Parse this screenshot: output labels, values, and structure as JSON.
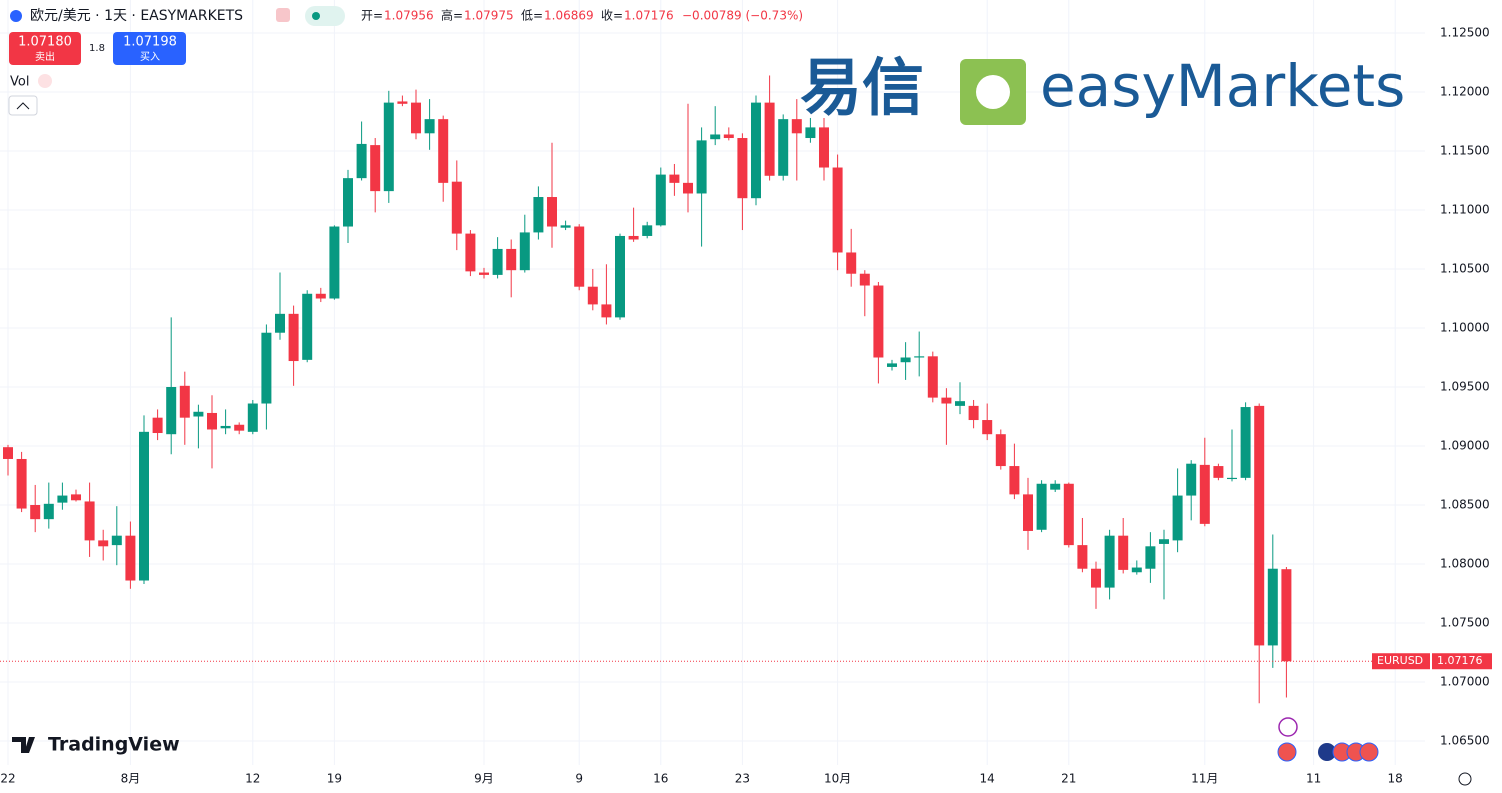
{
  "header": {
    "title": "欧元/美元 · 1天 · EASYMARKETS",
    "open_label": "开=",
    "high_label": "高=",
    "low_label": "低=",
    "close_label": "收=",
    "change": "−0.00789 (−0.73%)",
    "sell_price": "1.07180",
    "sell_label": "卖出",
    "spread": "1.8",
    "buy_price": "1.07198",
    "buy_label": "买入",
    "vol": "Vol",
    "logo_cn": "易信",
    "logo_en": "easyMarkets",
    "brand": "TradingView"
  },
  "chart_data": {
    "type": "candlestick",
    "symbol": "EURUSD",
    "up_color": "#089981",
    "down_color": "#f23645",
    "grid": true,
    "categories": [
      "22",
      null,
      null,
      null,
      null,
      null,
      null,
      null,
      null,
      "8月",
      null,
      null,
      null,
      null,
      null,
      null,
      null,
      null,
      "12",
      null,
      null,
      null,
      null,
      null,
      "19",
      null,
      null,
      null,
      null,
      null,
      null,
      null,
      null,
      null,
      null,
      "9月",
      null,
      null,
      null,
      null,
      null,
      null,
      "9",
      null,
      null,
      null,
      null,
      null,
      "16",
      null,
      null,
      null,
      null,
      null,
      "23",
      null,
      null,
      null,
      null,
      null,
      null,
      "10月",
      null,
      null,
      null,
      null,
      null,
      null,
      null,
      null,
      null,
      null,
      "14",
      null,
      null,
      null,
      null,
      null,
      "21",
      null,
      null,
      null,
      null,
      null,
      null,
      null,
      null,
      null,
      "11月",
      null,
      null,
      null,
      null,
      null,
      null,
      null,
      "11",
      null,
      null,
      null,
      null,
      null,
      "18",
      null
    ],
    "open": [
      1.0899,
      1.0889,
      1.085,
      1.0838,
      1.0852,
      1.0859,
      1.0853,
      1.082,
      1.0816,
      1.0824,
      1.0786,
      1.0924,
      1.091,
      1.0951,
      1.0925,
      1.0928,
      1.0915,
      1.0918,
      1.0912,
      1.0936,
      1.0996,
      1.1012,
      1.0973,
      1.1029,
      1.1025,
      1.1086,
      1.1127,
      1.1155,
      1.1116,
      1.1192,
      1.1191,
      1.1165,
      1.1177,
      1.1124,
      1.108,
      1.1047,
      1.1045,
      1.1067,
      1.1049,
      1.1081,
      1.1111,
      1.1085,
      1.1086,
      1.1035,
      1.102,
      1.1009,
      1.1078,
      1.1078,
      1.1087,
      1.113,
      1.1123,
      1.1114,
      1.116,
      1.1164,
      1.1161,
      1.111,
      1.1191,
      1.1129,
      1.1177,
      1.1161,
      1.117,
      1.1136,
      1.1064,
      1.1046,
      1.1036,
      1.0967,
      1.0971,
      1.0975,
      1.0976,
      1.0941,
      1.0934,
      1.0934,
      1.0922,
      1.091,
      1.0883,
      1.0859,
      1.0829,
      1.0863,
      1.0868,
      1.0816,
      1.0796,
      1.078,
      1.0824,
      1.0793,
      1.0796,
      1.0817,
      1.082,
      1.0858,
      1.0884,
      1.0883,
      1.0872,
      1.0873,
      1.0934,
      1.0731,
      1.07956,
      null,
      null,
      null,
      null,
      null,
      null,
      null,
      null,
      null
    ],
    "high": [
      1.0901,
      1.0895,
      1.0867,
      1.0869,
      1.0869,
      1.0863,
      1.0869,
      1.0829,
      1.0849,
      1.0836,
      1.0926,
      1.0931,
      1.1009,
      1.0963,
      1.0935,
      1.0943,
      1.0931,
      1.092,
      1.0939,
      1.1003,
      1.1047,
      1.1019,
      1.1032,
      1.1034,
      1.1087,
      1.1134,
      1.1175,
      1.1161,
      1.1201,
      1.1197,
      1.1202,
      1.1194,
      1.118,
      1.1142,
      1.1083,
      1.1051,
      1.1077,
      1.1075,
      1.1096,
      1.112,
      1.1157,
      1.1091,
      1.1088,
      1.105,
      1.1054,
      1.108,
      1.1102,
      1.109,
      1.1136,
      1.1139,
      1.119,
      1.117,
      1.1188,
      1.117,
      1.1165,
      1.1197,
      1.1214,
      1.1181,
      1.1194,
      1.1178,
      1.1178,
      1.1147,
      1.1084,
      1.1049,
      1.1039,
      1.0973,
      1.0988,
      1.0997,
      1.098,
      1.0949,
      1.0954,
      1.0939,
      1.0936,
      1.0914,
      1.0902,
      1.0873,
      1.0871,
      1.0871,
      1.0869,
      1.0839,
      1.0802,
      1.0829,
      1.0839,
      1.0803,
      1.0827,
      1.0829,
      1.0881,
      1.0888,
      1.0907,
      1.0885,
      1.0914,
      1.0937,
      1.0936,
      1.0825,
      1.07975,
      null,
      null,
      null,
      null,
      null,
      null,
      null,
      null,
      null
    ],
    "low": [
      1.0875,
      1.0844,
      1.0827,
      1.083,
      1.0846,
      1.0853,
      1.0806,
      1.0803,
      1.0799,
      1.0779,
      1.0783,
      1.0905,
      1.0893,
      1.0901,
      1.0898,
      1.0881,
      1.091,
      1.091,
      1.091,
      1.0914,
      1.099,
      1.0951,
      1.0971,
      1.1022,
      1.1024,
      1.1072,
      1.1125,
      1.1098,
      1.1106,
      1.1188,
      1.116,
      1.1151,
      1.1107,
      1.1066,
      1.1044,
      1.1042,
      1.1042,
      1.1026,
      1.1047,
      1.1075,
      1.1068,
      1.1083,
      1.1032,
      1.1015,
      1.1003,
      1.1007,
      1.1073,
      1.1076,
      1.1086,
      1.1112,
      1.1098,
      1.1069,
      1.1155,
      1.1159,
      1.1083,
      1.1104,
      1.1125,
      1.1125,
      1.1125,
      1.1157,
      1.1125,
      1.1049,
      1.1035,
      1.101,
      1.0953,
      1.0964,
      1.0956,
      1.0959,
      1.0937,
      1.0901,
      1.0927,
      1.0915,
      1.0905,
      1.088,
      1.0855,
      1.0812,
      1.0827,
      1.0861,
      1.0814,
      1.0793,
      1.0762,
      1.077,
      1.0792,
      1.0791,
      1.0784,
      1.077,
      1.081,
      1.0837,
      1.0832,
      1.0871,
      1.087,
      1.0871,
      1.0682,
      1.0712,
      1.06869,
      null,
      null,
      null,
      null,
      null,
      null,
      null,
      null,
      null
    ],
    "close": [
      1.0889,
      1.0847,
      1.0838,
      1.0851,
      1.0858,
      1.0854,
      1.082,
      1.0815,
      1.0824,
      1.0786,
      1.0912,
      1.0911,
      1.095,
      1.0924,
      1.0929,
      1.0914,
      1.0917,
      1.0913,
      1.0936,
      1.0996,
      1.1012,
      1.0972,
      1.1029,
      1.1025,
      1.1086,
      1.1127,
      1.1156,
      1.1116,
      1.1191,
      1.119,
      1.1165,
      1.1177,
      1.1123,
      1.108,
      1.1048,
      1.1045,
      1.1067,
      1.1049,
      1.1081,
      1.1111,
      1.1086,
      1.1087,
      1.1035,
      1.102,
      1.1009,
      1.1078,
      1.1075,
      1.1087,
      1.113,
      1.1123,
      1.1114,
      1.1159,
      1.1164,
      1.1161,
      1.111,
      1.1191,
      1.1129,
      1.1177,
      1.1165,
      1.117,
      1.1136,
      1.1064,
      1.1046,
      1.1036,
      1.0975,
      1.097,
      1.0975,
      1.0976,
      1.0941,
      1.0936,
      1.0938,
      1.0922,
      1.091,
      1.0883,
      1.0859,
      1.0828,
      1.0868,
      1.0868,
      1.0816,
      1.0796,
      1.078,
      1.0824,
      1.0795,
      1.0797,
      1.0815,
      1.0821,
      1.0858,
      1.0885,
      1.0834,
      1.0873,
      1.0873,
      1.0933,
      1.0731,
      1.0796,
      1.07176,
      null,
      null,
      null,
      null,
      null,
      null,
      null,
      null,
      null
    ],
    "ylim": [
      1.065,
      1.125
    ],
    "yticks": [
      {
        "value": 1.065,
        "label": "1.06500"
      },
      {
        "value": 1.07,
        "label": "1.07000"
      },
      {
        "value": 1.075,
        "label": "1.07500"
      },
      {
        "value": 1.08,
        "label": "1.08000"
      },
      {
        "value": 1.085,
        "label": "1.08500"
      },
      {
        "value": 1.09,
        "label": "1.09000"
      },
      {
        "value": 1.095,
        "label": "1.09500"
      },
      {
        "value": 1.1,
        "label": "1.10000"
      },
      {
        "value": 1.105,
        "label": "1.10500"
      },
      {
        "value": 1.11,
        "label": "1.11000"
      },
      {
        "value": 1.115,
        "label": "1.11500"
      },
      {
        "value": 1.12,
        "label": "1.12000"
      },
      {
        "value": 1.125,
        "label": "1.12500"
      }
    ]
  }
}
